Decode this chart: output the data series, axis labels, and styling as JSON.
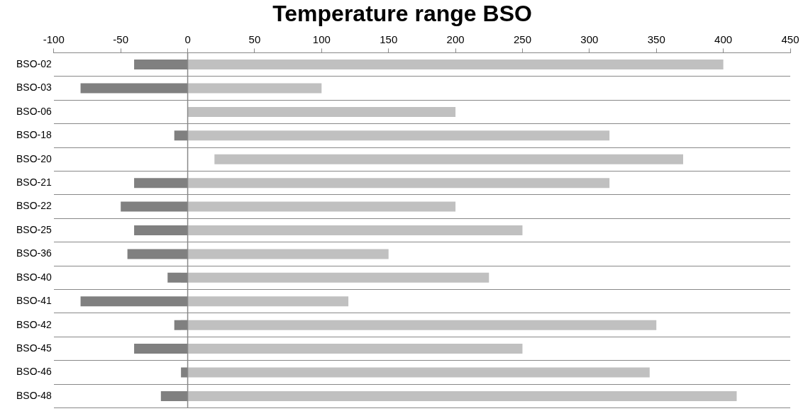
{
  "chart_data": {
    "type": "bar",
    "orientation": "horizontal",
    "title": "Temperature range BSO",
    "categories": [
      "BSO-02",
      "BSO-03",
      "BSO-06",
      "BSO-18",
      "BSO-20",
      "BSO-21",
      "BSO-22",
      "BSO-25",
      "BSO-36",
      "BSO-40",
      "BSO-41",
      "BSO-42",
      "BSO-45",
      "BSO-46",
      "BSO-48"
    ],
    "series": [
      {
        "color": "#808080",
        "values": [
          -40,
          -80,
          null,
          -10,
          null,
          -40,
          -50,
          -40,
          -45,
          -15,
          -80,
          -10,
          -40,
          -5,
          -20
        ]
      },
      {
        "color": "#c0c0c0",
        "base": [
          0,
          0,
          0,
          0,
          20,
          0,
          0,
          0,
          0,
          0,
          0,
          0,
          0,
          0,
          0
        ],
        "values": [
          400,
          100,
          200,
          315,
          350,
          315,
          200,
          250,
          150,
          225,
          120,
          350,
          250,
          345,
          410
        ]
      }
    ],
    "xlim": [
      -100,
      450
    ],
    "xticks": [
      -100,
      -50,
      0,
      50,
      100,
      150,
      200,
      250,
      300,
      350,
      400,
      450
    ],
    "stacked": true,
    "grid": "y",
    "legend": false
  }
}
